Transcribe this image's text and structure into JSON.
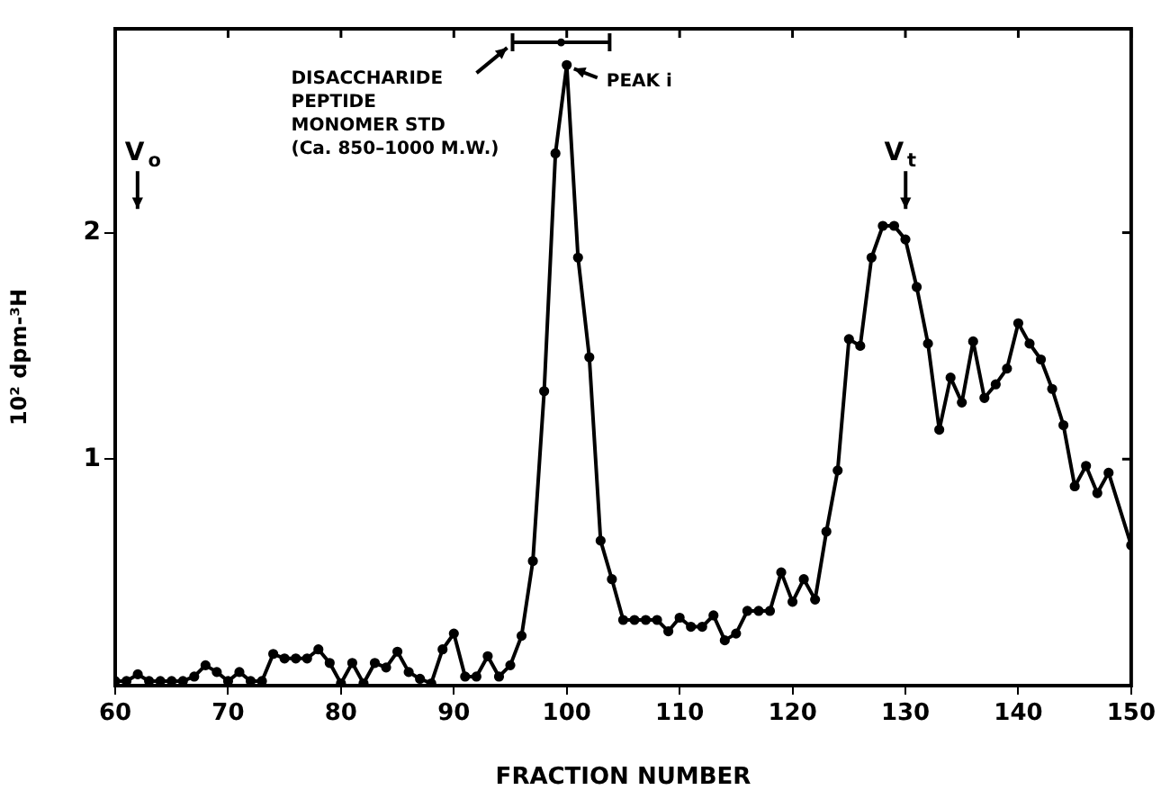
{
  "chart_data": {
    "type": "line",
    "xlabel": "FRACTION NUMBER",
    "ylabel": "10² dpm-³H",
    "xlim": [
      60,
      150
    ],
    "xticks": [
      60,
      70,
      80,
      90,
      100,
      110,
      120,
      130,
      140,
      150
    ],
    "ylim": [
      0,
      2.9
    ],
    "yticks": [
      1,
      2
    ],
    "marker": "circle",
    "line_style": "solid",
    "series": [
      {
        "color": "#000000",
        "x": [
          60,
          61,
          62,
          63,
          64,
          65,
          66,
          67,
          68,
          69,
          70,
          71,
          72,
          73,
          74,
          75,
          76,
          77,
          78,
          79,
          80,
          81,
          82,
          83,
          84,
          85,
          86,
          87,
          88,
          89,
          90,
          91,
          92,
          93,
          94,
          95,
          96,
          97,
          98,
          99,
          100,
          101,
          102,
          103,
          104,
          105,
          106,
          107,
          108,
          109,
          110,
          111,
          112,
          113,
          114,
          115,
          116,
          117,
          118,
          119,
          120,
          121,
          122,
          123,
          124,
          125,
          126,
          127,
          128,
          129,
          130,
          131,
          132,
          133,
          134,
          135,
          136,
          137,
          138,
          139,
          140,
          141,
          142,
          143,
          144,
          145,
          146,
          147,
          148,
          150
        ],
        "values": [
          0.02,
          0.02,
          0.05,
          0.02,
          0.02,
          0.02,
          0.02,
          0.04,
          0.09,
          0.06,
          0.02,
          0.06,
          0.02,
          0.02,
          0.14,
          0.12,
          0.12,
          0.12,
          0.16,
          0.1,
          0.01,
          0.1,
          0.01,
          0.1,
          0.08,
          0.15,
          0.06,
          0.03,
          0.01,
          0.16,
          0.23,
          0.04,
          0.04,
          0.13,
          0.04,
          0.09,
          0.22,
          0.55,
          1.3,
          2.35,
          2.74,
          1.89,
          1.45,
          0.64,
          0.47,
          0.29,
          0.29,
          0.29,
          0.29,
          0.24,
          0.3,
          0.26,
          0.26,
          0.31,
          0.2,
          0.23,
          0.33,
          0.33,
          0.33,
          0.5,
          0.37,
          0.47,
          0.38,
          0.68,
          0.95,
          1.53,
          1.5,
          1.89,
          2.03,
          2.03,
          1.97,
          1.76,
          1.51,
          1.13,
          1.36,
          1.25,
          1.52,
          1.27,
          1.33,
          1.4,
          1.6,
          1.51,
          1.44,
          1.31,
          1.15,
          0.88,
          0.97,
          0.85,
          0.94,
          0.62
        ]
      },
      {
        "type": "scatter",
        "color": "#000000",
        "marker": "circle",
        "x": [
          99.5
        ],
        "values": [
          2.84
        ],
        "xerrors": [
          4.3
        ]
      }
    ],
    "annotations": [
      "V$_{o}$",
      {
        "text": "DISACCHARIDE\nPEPTIDE\nMONOMER STD\n(Ca. 850–1000 M.W.)",
        "x": 95.2,
        "y": 2.84
      },
      {
        "text": "PEAK i",
        "x": 100,
        "y": 2.74
      },
      "V$_{t}$"
    ]
  }
}
